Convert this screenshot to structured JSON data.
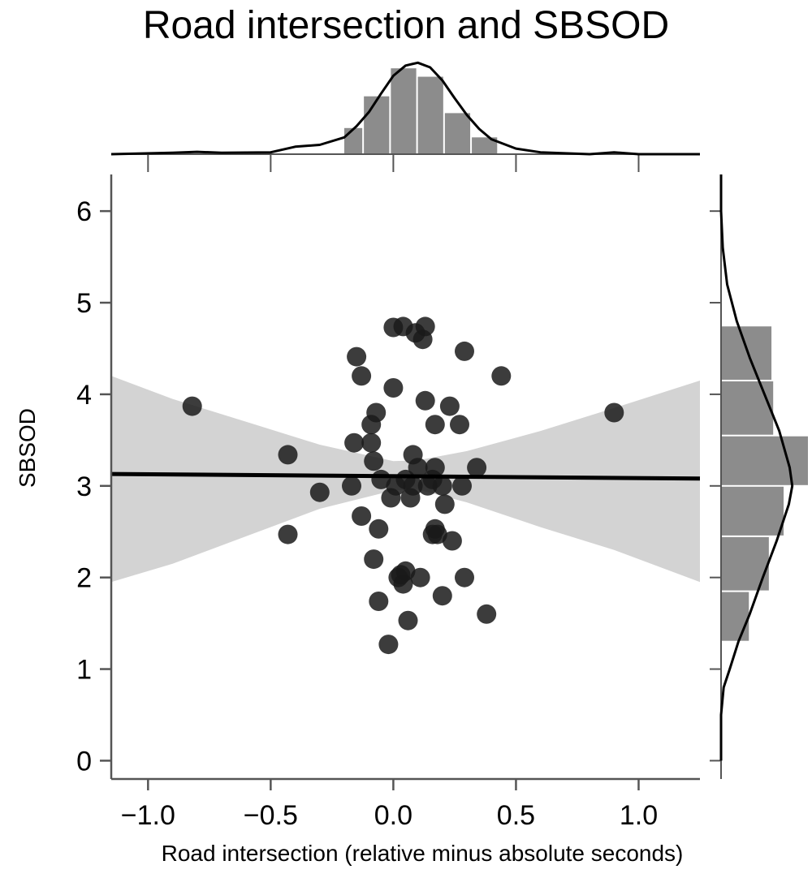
{
  "chart_data": {
    "type": "scatter",
    "title": "Road intersection and SBSOD",
    "xlabel": "Road intersection (relative minus absolute  seconds)",
    "ylabel": "SBSOD",
    "xlim": [
      -1.15,
      1.25
    ],
    "ylim": [
      -0.2,
      6.4
    ],
    "xticks": [
      -1.0,
      -0.5,
      0.0,
      0.5,
      1.0
    ],
    "xtick_labels": [
      "−1.0",
      "−0.5",
      "0.0",
      "0.5",
      "1.0"
    ],
    "yticks": [
      0,
      1,
      2,
      3,
      4,
      5,
      6
    ],
    "ytick_labels": [
      "0",
      "1",
      "2",
      "3",
      "4",
      "5",
      "6"
    ],
    "grid": false,
    "points": [
      {
        "x": -0.82,
        "y": 3.87
      },
      {
        "x": -0.43,
        "y": 3.34
      },
      {
        "x": -0.43,
        "y": 2.47
      },
      {
        "x": -0.3,
        "y": 2.93
      },
      {
        "x": -0.17,
        "y": 3.0
      },
      {
        "x": -0.16,
        "y": 3.47
      },
      {
        "x": -0.15,
        "y": 4.41
      },
      {
        "x": -0.13,
        "y": 4.2
      },
      {
        "x": -0.13,
        "y": 2.67
      },
      {
        "x": -0.09,
        "y": 3.67
      },
      {
        "x": -0.09,
        "y": 3.47
      },
      {
        "x": -0.08,
        "y": 3.27
      },
      {
        "x": -0.07,
        "y": 3.8
      },
      {
        "x": -0.08,
        "y": 2.2
      },
      {
        "x": -0.06,
        "y": 1.74
      },
      {
        "x": -0.06,
        "y": 2.53
      },
      {
        "x": -0.05,
        "y": 3.07
      },
      {
        "x": -0.02,
        "y": 1.27
      },
      {
        "x": -0.01,
        "y": 2.87
      },
      {
        "x": 0.0,
        "y": 4.73
      },
      {
        "x": 0.0,
        "y": 4.07
      },
      {
        "x": 0.01,
        "y": 3.0
      },
      {
        "x": 0.02,
        "y": 2.0
      },
      {
        "x": 0.03,
        "y": 2.03
      },
      {
        "x": 0.04,
        "y": 4.74
      },
      {
        "x": 0.04,
        "y": 1.93
      },
      {
        "x": 0.05,
        "y": 3.07
      },
      {
        "x": 0.05,
        "y": 2.07
      },
      {
        "x": 0.06,
        "y": 1.53
      },
      {
        "x": 0.07,
        "y": 2.87
      },
      {
        "x": 0.08,
        "y": 3.34
      },
      {
        "x": 0.08,
        "y": 3.0
      },
      {
        "x": 0.09,
        "y": 4.67
      },
      {
        "x": 0.1,
        "y": 3.2
      },
      {
        "x": 0.11,
        "y": 2.0
      },
      {
        "x": 0.12,
        "y": 4.6
      },
      {
        "x": 0.13,
        "y": 4.74
      },
      {
        "x": 0.13,
        "y": 3.93
      },
      {
        "x": 0.14,
        "y": 3.0
      },
      {
        "x": 0.16,
        "y": 2.47
      },
      {
        "x": 0.16,
        "y": 3.07
      },
      {
        "x": 0.17,
        "y": 3.2
      },
      {
        "x": 0.17,
        "y": 3.67
      },
      {
        "x": 0.17,
        "y": 2.53
      },
      {
        "x": 0.18,
        "y": 2.47
      },
      {
        "x": 0.2,
        "y": 3.0
      },
      {
        "x": 0.2,
        "y": 1.8
      },
      {
        "x": 0.21,
        "y": 2.8
      },
      {
        "x": 0.23,
        "y": 3.87
      },
      {
        "x": 0.24,
        "y": 2.4
      },
      {
        "x": 0.27,
        "y": 3.67
      },
      {
        "x": 0.28,
        "y": 3.0
      },
      {
        "x": 0.29,
        "y": 4.47
      },
      {
        "x": 0.29,
        "y": 2.0
      },
      {
        "x": 0.34,
        "y": 3.2
      },
      {
        "x": 0.38,
        "y": 1.6
      },
      {
        "x": 0.44,
        "y": 4.2
      },
      {
        "x": 0.9,
        "y": 3.8
      }
    ],
    "regression": {
      "x": [
        -1.15,
        1.25
      ],
      "y": [
        3.13,
        3.08
      ]
    },
    "confidence_band": {
      "x": [
        -1.15,
        -0.9,
        -0.6,
        -0.3,
        0.0,
        0.1,
        0.3,
        0.6,
        0.9,
        1.25
      ],
      "lower": [
        1.95,
        2.15,
        2.45,
        2.75,
        2.95,
        2.96,
        2.82,
        2.55,
        2.3,
        1.95
      ],
      "upper": [
        4.2,
        3.95,
        3.7,
        3.45,
        3.27,
        3.28,
        3.38,
        3.6,
        3.85,
        4.15
      ]
    },
    "marginal_x_hist": {
      "bins": [
        -0.2,
        -0.12,
        -0.01,
        0.1,
        0.21,
        0.32,
        0.43
      ],
      "heights": [
        0.28,
        0.62,
        0.92,
        0.83,
        0.44,
        0.18
      ]
    },
    "marginal_x_kde": {
      "x": [
        -1.15,
        -0.9,
        -0.8,
        -0.7,
        -0.5,
        -0.4,
        -0.3,
        -0.2,
        -0.15,
        -0.1,
        -0.05,
        0.0,
        0.05,
        0.1,
        0.15,
        0.2,
        0.25,
        0.3,
        0.35,
        0.4,
        0.5,
        0.6,
        0.8,
        0.9,
        1.0,
        1.25
      ],
      "y": [
        0.0,
        0.015,
        0.025,
        0.015,
        0.02,
        0.08,
        0.1,
        0.18,
        0.3,
        0.45,
        0.65,
        0.84,
        0.95,
        0.98,
        0.93,
        0.79,
        0.6,
        0.42,
        0.27,
        0.16,
        0.06,
        0.02,
        0.0,
        0.02,
        0.0,
        0.0
      ]
    },
    "marginal_y_hist": {
      "bins": [
        1.3,
        1.85,
        2.45,
        3.0,
        3.55,
        4.15,
        4.75
      ],
      "heights": [
        0.32,
        0.55,
        0.72,
        1.0,
        0.6,
        0.58
      ]
    },
    "marginal_y_kde": {
      "y": [
        0.0,
        0.5,
        0.8,
        1.0,
        1.3,
        1.6,
        2.0,
        2.4,
        2.8,
        3.0,
        3.2,
        3.6,
        4.0,
        4.4,
        4.8,
        5.2,
        5.6,
        6.0,
        6.4
      ],
      "x": [
        0.0,
        0.0,
        0.03,
        0.1,
        0.2,
        0.33,
        0.48,
        0.64,
        0.78,
        0.82,
        0.79,
        0.67,
        0.5,
        0.33,
        0.18,
        0.07,
        0.02,
        0.0,
        0.0
      ]
    },
    "colors": {
      "points": "#1a1a1a",
      "regression_line": "#000000",
      "confidence_band": "#d3d3d3",
      "histogram": "#8c8c8c",
      "kde": "#000000"
    }
  }
}
